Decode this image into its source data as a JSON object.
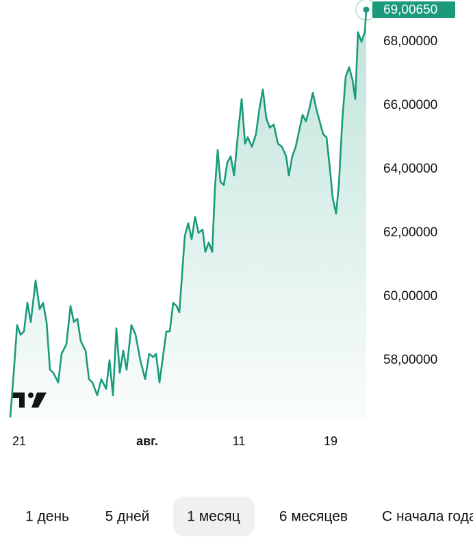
{
  "chart_data": {
    "type": "area",
    "x": [
      0,
      5,
      10,
      15,
      20,
      25,
      30,
      37,
      43,
      48,
      53,
      58,
      63,
      70,
      75,
      82,
      88,
      93,
      98,
      103,
      110,
      115,
      120,
      127,
      133,
      140,
      145,
      150,
      155,
      160,
      165,
      170,
      177,
      183,
      190,
      197,
      203,
      209,
      213,
      218,
      223,
      228,
      233,
      238,
      243,
      247,
      251,
      255,
      260,
      265,
      270,
      275,
      281,
      285,
      290,
      295,
      299,
      303,
      307,
      312,
      317,
      322,
      327,
      333,
      338,
      343,
      347,
      353,
      359,
      364,
      369,
      374,
      379,
      385,
      391,
      397,
      403,
      407,
      412,
      417,
      422,
      427,
      432,
      437,
      442,
      447,
      452,
      457,
      462,
      467,
      471,
      476,
      480,
      485,
      490,
      495,
      500,
      504,
      508,
      513,
      518,
      520
    ],
    "values": [
      56.2,
      57.6,
      59.1,
      58.8,
      58.9,
      59.8,
      59.2,
      60.5,
      59.6,
      59.8,
      59.2,
      57.7,
      57.6,
      57.3,
      58.2,
      58.5,
      59.7,
      59.2,
      59.3,
      58.6,
      58.3,
      57.4,
      57.3,
      56.9,
      57.4,
      57.1,
      58.0,
      56.9,
      59.0,
      57.6,
      58.3,
      57.7,
      59.1,
      58.8,
      58.0,
      57.4,
      58.2,
      58.1,
      58.2,
      57.3,
      58.1,
      58.9,
      58.9,
      59.8,
      59.7,
      59.5,
      60.7,
      61.9,
      62.3,
      61.8,
      62.5,
      62.0,
      62.1,
      61.4,
      61.7,
      61.4,
      63.4,
      64.6,
      63.6,
      63.5,
      64.2,
      64.4,
      63.8,
      65.2,
      66.2,
      64.8,
      65.0,
      64.7,
      65.1,
      65.9,
      66.5,
      65.6,
      65.3,
      65.4,
      64.8,
      64.7,
      64.4,
      63.8,
      64.4,
      64.7,
      65.2,
      65.7,
      65.5,
      65.9,
      66.4,
      65.9,
      65.5,
      65.1,
      65.0,
      64.0,
      63.1,
      62.6,
      63.5,
      65.5,
      66.9,
      67.2,
      66.8,
      66.2,
      68.3,
      68.0,
      68.3,
      69.0065
    ],
    "value_labels": [
      null,
      null,
      null,
      null,
      null,
      null,
      null,
      null,
      null,
      null,
      null,
      null,
      null,
      null,
      null,
      null,
      null,
      null,
      null,
      null,
      null,
      null,
      null,
      null,
      null,
      null,
      null,
      null,
      null,
      null,
      null,
      null,
      null,
      null,
      null,
      null,
      null,
      null,
      null,
      null,
      null,
      null,
      null,
      null,
      null,
      null,
      null,
      null,
      null,
      null,
      null,
      null,
      null,
      null,
      null,
      null,
      null,
      null,
      null,
      null,
      null,
      null,
      null,
      null,
      null,
      null,
      null,
      null,
      null,
      null,
      null,
      null,
      null,
      null,
      null,
      null,
      null,
      null,
      null,
      null,
      null,
      null,
      null,
      null,
      null,
      null,
      null,
      null,
      null,
      null,
      null,
      null,
      null,
      null,
      null,
      null,
      null,
      null,
      null,
      null,
      null,
      "69,00650"
    ],
    "color": "#1a9a7a",
    "xlim": [
      0,
      520
    ],
    "xticks": [
      {
        "value": 13,
        "label": "21"
      },
      {
        "value": 200,
        "label": "авг."
      },
      {
        "value": 334,
        "label": "11"
      },
      {
        "value": 468,
        "label": "19"
      }
    ],
    "ylim": [
      56.08,
      69.31
    ],
    "yticks": [
      {
        "value": 58,
        "label": "58,00000"
      },
      {
        "value": 60,
        "label": "60,00000"
      },
      {
        "value": 62,
        "label": "62,00000"
      },
      {
        "value": 64,
        "label": "64,00000"
      },
      {
        "value": 66,
        "label": "66,00000"
      },
      {
        "value": 68,
        "label": "68,00000"
      }
    ]
  },
  "periods": {
    "items": [
      "1 день",
      "5 дней",
      "1 месяц",
      "6 месяцев",
      "С начала года"
    ],
    "active": 2
  }
}
